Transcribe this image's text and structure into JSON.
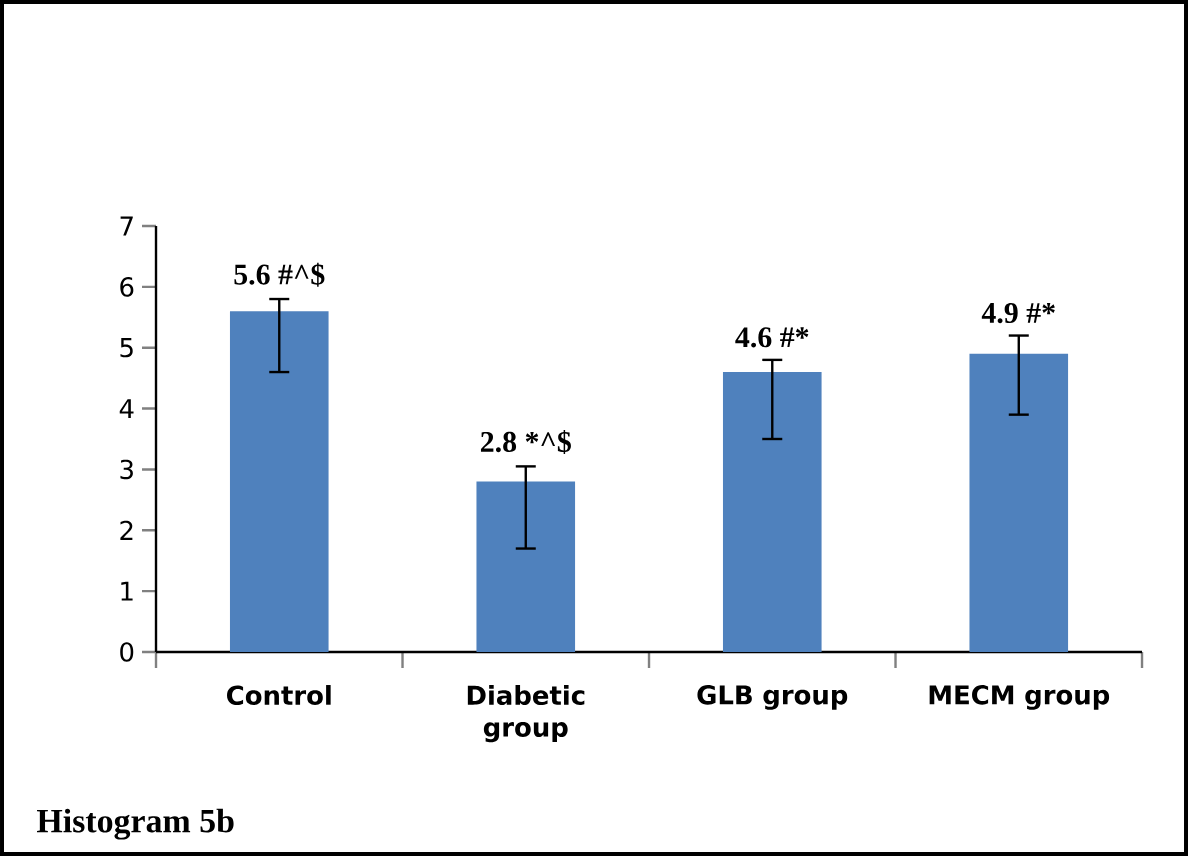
{
  "chart_data": {
    "type": "bar",
    "categories": [
      "Control",
      "Diabetic group",
      "GLB group",
      "MECM group"
    ],
    "values": [
      5.6,
      2.8,
      4.6,
      4.9
    ],
    "errors": [
      [
        4.6,
        5.8
      ],
      [
        1.7,
        3.05
      ],
      [
        3.5,
        4.8
      ],
      [
        3.9,
        5.2
      ]
    ],
    "value_labels": [
      "5.6 #^$",
      "2.8 *^$",
      "4.6 #*",
      "4.9 #*"
    ],
    "color": "#4f81bd",
    "ylim": [
      0,
      7
    ],
    "yticks": [
      0,
      1,
      2,
      3,
      4,
      5,
      6,
      7
    ],
    "annotations": [
      "Histogram 5b"
    ]
  }
}
